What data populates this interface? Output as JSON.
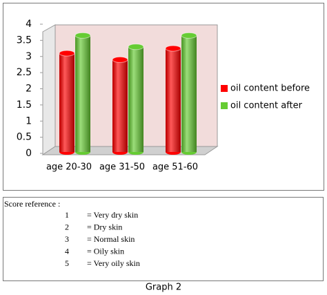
{
  "chart_data": {
    "type": "bar",
    "categories": [
      "age 20-30",
      "age 31-50",
      "age 51-60"
    ],
    "series": [
      {
        "name": "oil content before",
        "color": "#ff0000",
        "values": [
          3.1,
          2.9,
          3.25
        ]
      },
      {
        "name": "oil content after",
        "color": "#66cc33",
        "values": [
          3.65,
          3.3,
          3.65
        ]
      }
    ],
    "ylim": [
      0,
      4
    ],
    "yticks": [
      0,
      0.5,
      1,
      1.5,
      2,
      2.5,
      3,
      3.5,
      4
    ],
    "legend": "right",
    "grid": false
  },
  "score_reference": {
    "title": "Score reference :",
    "rows": [
      [
        "1",
        "= Very dry skin"
      ],
      [
        "2",
        "= Dry skin"
      ],
      [
        "3",
        "= Normal skin"
      ],
      [
        "4",
        "= Oily skin"
      ],
      [
        "5",
        "= Very oily skin"
      ]
    ]
  },
  "caption": "Graph 2"
}
